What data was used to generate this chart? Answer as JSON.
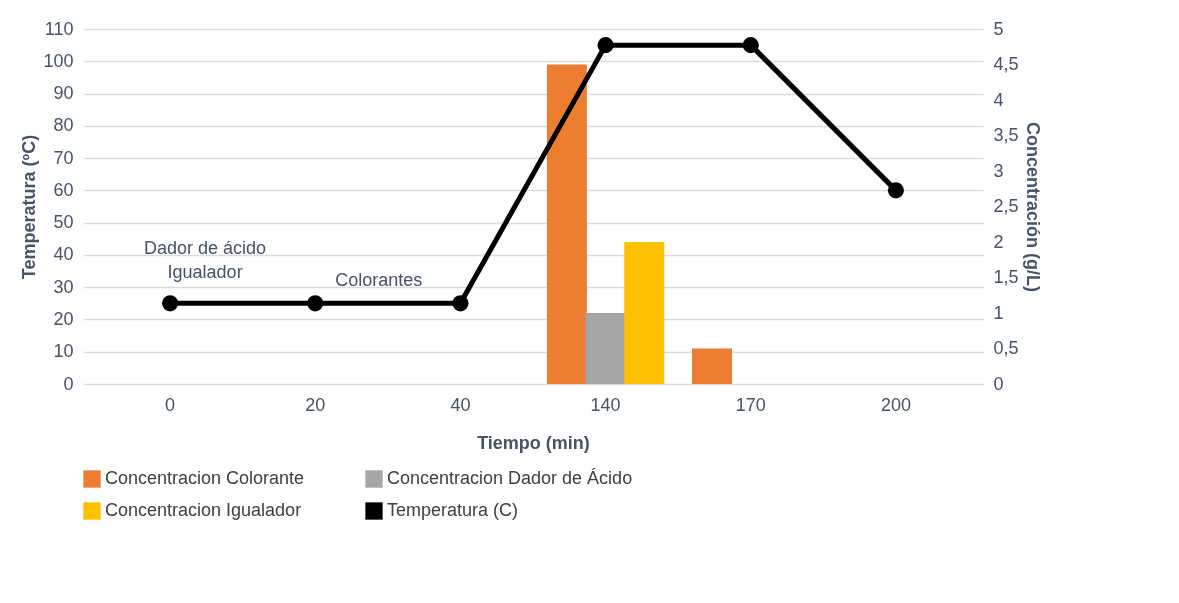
{
  "chart_data": {
    "type": "bar",
    "xlabel": "Tiempo (min)",
    "ylabel": "Temperatura (ºC)",
    "y2label": "Concentración (g/L)",
    "categories": [
      "0",
      "20",
      "40",
      "140",
      "170",
      "200"
    ],
    "series": [
      {
        "name": "Concentracion Colorante",
        "color": "#ed7d31",
        "axis": "y2",
        "values": [
          null,
          null,
          null,
          4.5,
          0.5,
          null
        ]
      },
      {
        "name": "Concentracion Dador de Ácido",
        "color": "#a5a5a5",
        "axis": "y2",
        "values": [
          null,
          null,
          null,
          1,
          null,
          null
        ]
      },
      {
        "name": "Concentracion Igualador",
        "color": "#ffc000",
        "axis": "y2",
        "values": [
          null,
          null,
          null,
          2,
          null,
          null
        ]
      },
      {
        "name": "Temperatura (C)",
        "type": "line",
        "color": "#000000",
        "marker": "circle",
        "values": [
          25,
          25,
          25,
          105,
          105,
          60
        ]
      }
    ],
    "ylim": [
      0,
      110
    ],
    "yticks": [
      0,
      10,
      20,
      30,
      40,
      50,
      60,
      70,
      80,
      90,
      100,
      110
    ],
    "y2lim": [
      0,
      5
    ],
    "y2ticks": [
      0,
      {
        "value": 0.5,
        "label": "0,5"
      },
      1,
      {
        "value": 1.5,
        "label": "1,5"
      },
      2,
      {
        "value": 2.5,
        "label": "2,5"
      },
      3,
      {
        "value": 3.5,
        "label": "3,5"
      },
      4,
      {
        "value": 4.5,
        "label": "4,5"
      },
      5
    ],
    "grid": "y",
    "legend": "bottom",
    "annotations": [
      {
        "text": "Dador de ácido",
        "x": "0",
        "y": 25
      },
      {
        "text": "Igualador",
        "x": "0",
        "y": 25
      },
      {
        "text": "Colorantes",
        "x": "20",
        "y": 25
      }
    ]
  }
}
